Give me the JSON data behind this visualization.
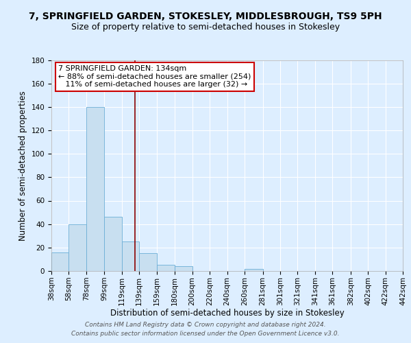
{
  "title": "7, SPRINGFIELD GARDEN, STOKESLEY, MIDDLESBROUGH, TS9 5PH",
  "subtitle": "Size of property relative to semi-detached houses in Stokesley",
  "xlabel": "Distribution of semi-detached houses by size in Stokesley",
  "ylabel": "Number of semi-detached properties",
  "bin_edges": [
    38,
    58,
    78,
    99,
    119,
    139,
    159,
    180,
    200,
    220,
    240,
    260,
    281,
    301,
    321,
    341,
    361,
    382,
    402,
    422,
    442
  ],
  "bar_heights": [
    16,
    40,
    140,
    46,
    25,
    15,
    5,
    4,
    0,
    0,
    0,
    2,
    0,
    0,
    0,
    0,
    0,
    0,
    0,
    0
  ],
  "bar_color": "#c8dff0",
  "bar_edgecolor": "#6baed6",
  "property_line_x": 134,
  "property_line_color": "#8b0000",
  "annotation_line1": "7 SPRINGFIELD GARDEN: 134sqm",
  "annotation_line2": "← 88% of semi-detached houses are smaller (254)",
  "annotation_line3": "   11% of semi-detached houses are larger (32) →",
  "annotation_box_color": "#ffffff",
  "annotation_box_edgecolor": "#cc0000",
  "ylim": [
    0,
    180
  ],
  "yticks": [
    0,
    20,
    40,
    60,
    80,
    100,
    120,
    140,
    160,
    180
  ],
  "tick_labels": [
    "38sqm",
    "58sqm",
    "78sqm",
    "99sqm",
    "119sqm",
    "139sqm",
    "159sqm",
    "180sqm",
    "200sqm",
    "220sqm",
    "240sqm",
    "260sqm",
    "281sqm",
    "301sqm",
    "321sqm",
    "341sqm",
    "361sqm",
    "382sqm",
    "402sqm",
    "422sqm",
    "442sqm"
  ],
  "background_color": "#ddeeff",
  "plot_background": "#ddeeff",
  "grid_color": "#ffffff",
  "footer_line1": "Contains HM Land Registry data © Crown copyright and database right 2024.",
  "footer_line2": "Contains public sector information licensed under the Open Government Licence v3.0.",
  "title_fontsize": 10,
  "subtitle_fontsize": 9,
  "axis_label_fontsize": 8.5,
  "tick_fontsize": 7.5,
  "annotation_fontsize": 8,
  "footer_fontsize": 6.5
}
